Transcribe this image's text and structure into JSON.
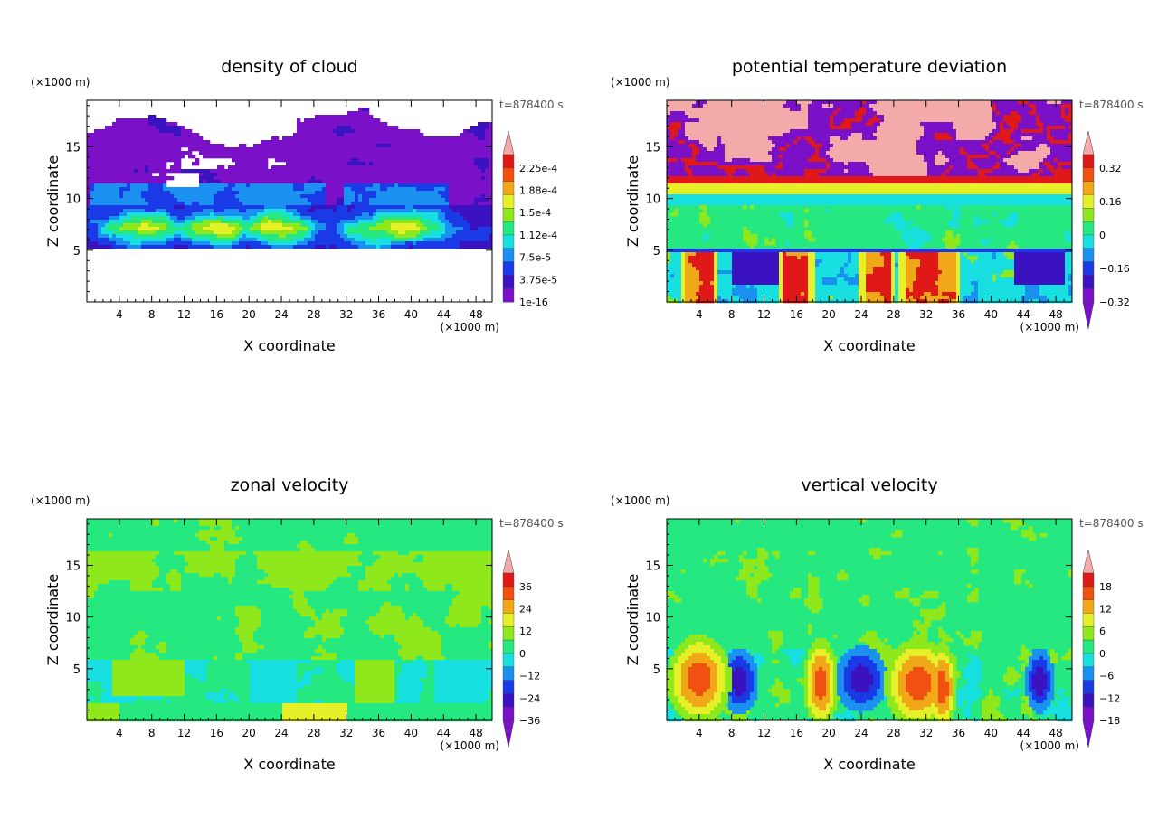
{
  "chart_data": [
    {
      "type": "heatmap",
      "title": "density of cloud",
      "xlabel": "X coordinate",
      "ylabel": "Z coordinate",
      "x_unit": "(×1000 m)",
      "z_unit": "(×1000 m)",
      "time_label": "t=878400 s",
      "xlim": [
        0,
        50
      ],
      "ylim": [
        0,
        19.5
      ],
      "x_ticks": [
        4,
        8,
        12,
        16,
        20,
        24,
        28,
        32,
        36,
        40,
        44,
        48
      ],
      "y_ticks": [
        5,
        10,
        15
      ],
      "colorbar": {
        "labels": [
          "2.25e-4",
          "1.88e-4",
          "1.5e-4",
          "1.12e-4",
          "7.5e-5",
          "3.75e-5",
          "1e-16"
        ],
        "extend": "top"
      },
      "field": "cloud",
      "background": "#ffffff"
    },
    {
      "type": "heatmap",
      "title": "potential temperature deviation",
      "xlabel": "X coordinate",
      "ylabel": "Z coordinate",
      "x_unit": "(×1000 m)",
      "z_unit": "(×1000 m)",
      "time_label": "t=878400 s",
      "xlim": [
        0,
        50
      ],
      "ylim": [
        0,
        19.5
      ],
      "x_ticks": [
        4,
        8,
        12,
        16,
        20,
        24,
        28,
        32,
        36,
        40,
        44,
        48
      ],
      "y_ticks": [
        5,
        10,
        15
      ],
      "colorbar": {
        "labels": [
          "0.32",
          "0.16",
          "0",
          "−0.16",
          "−0.32"
        ],
        "extend": "both"
      },
      "field": "theta",
      "background": "#26e880"
    },
    {
      "type": "heatmap",
      "title": "zonal velocity",
      "xlabel": "X coordinate",
      "ylabel": "Z coordinate",
      "x_unit": "(×1000 m)",
      "z_unit": "(×1000 m)",
      "time_label": "t=878400 s",
      "xlim": [
        0,
        50
      ],
      "ylim": [
        0,
        19.5
      ],
      "x_ticks": [
        4,
        8,
        12,
        16,
        20,
        24,
        28,
        32,
        36,
        40,
        44,
        48
      ],
      "y_ticks": [
        5,
        10,
        15
      ],
      "colorbar": {
        "labels": [
          "36",
          "24",
          "12",
          "0",
          "−12",
          "−24",
          "−36"
        ],
        "extend": "both"
      },
      "field": "zonal",
      "background": "#2ee87a"
    },
    {
      "type": "heatmap",
      "title": "vertical velocity",
      "xlabel": "X coordinate",
      "ylabel": "Z coordinate",
      "x_unit": "(×1000 m)",
      "z_unit": "(×1000 m)",
      "time_label": "t=878400 s",
      "xlim": [
        0,
        50
      ],
      "ylim": [
        0,
        19.5
      ],
      "x_ticks": [
        4,
        8,
        12,
        16,
        20,
        24,
        28,
        32,
        36,
        40,
        44,
        48
      ],
      "y_ticks": [
        5,
        10,
        15
      ],
      "colorbar": {
        "labels": [
          "18",
          "12",
          "6",
          "0",
          "−6",
          "−12",
          "−18"
        ],
        "extend": "both"
      },
      "field": "vertical",
      "background": "#26e880"
    }
  ],
  "palette": [
    "#7a10c8",
    "#3a12c0",
    "#1a3ae8",
    "#1a90f0",
    "#19e0e0",
    "#26e880",
    "#8ee81c",
    "#e6f028",
    "#f0a818",
    "#f05010",
    "#e01818",
    "#f4aaa8"
  ]
}
